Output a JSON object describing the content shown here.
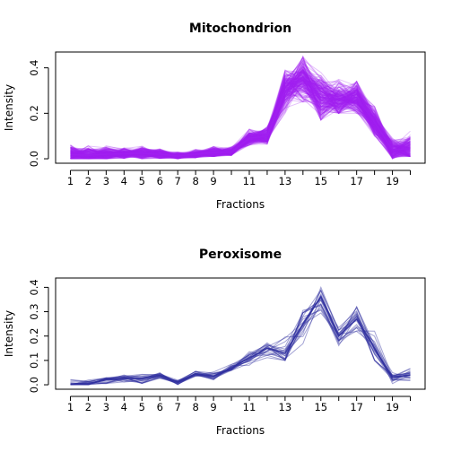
{
  "chart_data": [
    {
      "type": "line",
      "title": "Mitochondrion",
      "xlabel": "Fractions",
      "ylabel": "Intensity",
      "line_color": "#A020F0",
      "x": [
        1,
        2,
        3,
        4,
        5,
        6,
        7,
        8,
        9,
        10,
        11,
        12,
        13,
        14,
        15,
        16,
        17,
        18,
        19,
        20
      ],
      "xticks": [
        "1",
        "2",
        "3",
        "4",
        "5",
        "6",
        "7",
        "8",
        "9",
        "11",
        "13",
        "15",
        "17",
        "19"
      ],
      "xtick_positions": [
        1,
        2,
        3,
        4,
        5,
        6,
        7,
        8,
        9,
        11,
        13,
        15,
        17,
        19
      ],
      "yticks": [
        "0.0",
        "0.2",
        "0.4"
      ],
      "ytick_values": [
        0.0,
        0.2,
        0.4
      ],
      "ylim": [
        0.0,
        0.45
      ],
      "profile": [
        0.018,
        0.015,
        0.02,
        0.022,
        0.025,
        0.02,
        0.012,
        0.02,
        0.028,
        0.03,
        0.09,
        0.1,
        0.3,
        0.36,
        0.27,
        0.26,
        0.27,
        0.16,
        0.04,
        0.045
      ],
      "envelope_low": [
        0.0,
        0.0,
        0.0,
        0.002,
        0.0,
        0.002,
        0.0,
        0.005,
        0.01,
        0.015,
        0.06,
        0.065,
        0.2,
        0.25,
        0.17,
        0.2,
        0.2,
        0.1,
        0.0,
        0.01
      ],
      "envelope_high": [
        0.08,
        0.075,
        0.06,
        0.05,
        0.055,
        0.045,
        0.035,
        0.045,
        0.055,
        0.06,
        0.13,
        0.14,
        0.4,
        0.45,
        0.38,
        0.35,
        0.34,
        0.23,
        0.1,
        0.14
      ],
      "n_lines": 200
    },
    {
      "type": "line",
      "title": "Peroxisome",
      "xlabel": "Fractions",
      "ylabel": "Intensity",
      "line_color": "#3030A0",
      "x": [
        1,
        2,
        3,
        4,
        5,
        6,
        7,
        8,
        9,
        10,
        11,
        12,
        13,
        14,
        15,
        16,
        17,
        18,
        19,
        20
      ],
      "xticks": [
        "1",
        "2",
        "3",
        "4",
        "5",
        "6",
        "7",
        "8",
        "9",
        "11",
        "13",
        "15",
        "17",
        "19"
      ],
      "xtick_positions": [
        1,
        2,
        3,
        4,
        5,
        6,
        7,
        8,
        9,
        11,
        13,
        15,
        17,
        19
      ],
      "yticks": [
        "0.0",
        "0.1",
        "0.2",
        "0.3",
        "0.4"
      ],
      "ytick_values": [
        0.0,
        0.1,
        0.2,
        0.3,
        0.4
      ],
      "ylim": [
        0.0,
        0.42
      ],
      "profile": [
        0.003,
        0.005,
        0.02,
        0.025,
        0.025,
        0.04,
        0.01,
        0.045,
        0.035,
        0.07,
        0.11,
        0.15,
        0.13,
        0.25,
        0.36,
        0.2,
        0.27,
        0.15,
        0.03,
        0.04
      ],
      "envelope_low": [
        0.0,
        0.0,
        0.005,
        0.01,
        0.005,
        0.02,
        0.0,
        0.03,
        0.02,
        0.05,
        0.08,
        0.1,
        0.1,
        0.15,
        0.26,
        0.15,
        0.18,
        0.1,
        0.0,
        0.01
      ],
      "envelope_high": [
        0.04,
        0.03,
        0.04,
        0.04,
        0.05,
        0.055,
        0.03,
        0.055,
        0.055,
        0.085,
        0.16,
        0.18,
        0.28,
        0.32,
        0.4,
        0.28,
        0.32,
        0.23,
        0.05,
        0.07
      ],
      "n_lines": 20
    }
  ]
}
